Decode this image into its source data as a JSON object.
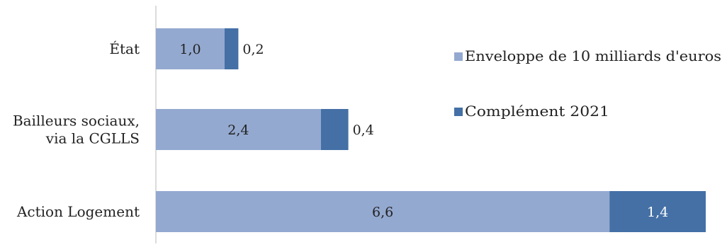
{
  "chart_data": {
    "type": "bar",
    "orientation": "horizontal",
    "stacked": true,
    "categories": [
      [
        "État"
      ],
      [
        "Bailleurs sociaux,",
        "via la CGLLS"
      ],
      [
        "Action Logement"
      ]
    ],
    "series": [
      {
        "name": "Enveloppe de 10 milliards d'euros",
        "values": [
          1.0,
          2.4,
          6.6
        ],
        "labels": [
          "1,0",
          "2,4",
          "6,6"
        ],
        "color": "#94a9d0"
      },
      {
        "name": "Complément 2021",
        "values": [
          0.2,
          0.4,
          1.4
        ],
        "labels": [
          "0,2",
          "0,4",
          "1,4"
        ],
        "color": "#4470a6"
      }
    ],
    "xlim": [
      0,
      8.4
    ],
    "grid": false,
    "legend_position": "right"
  }
}
